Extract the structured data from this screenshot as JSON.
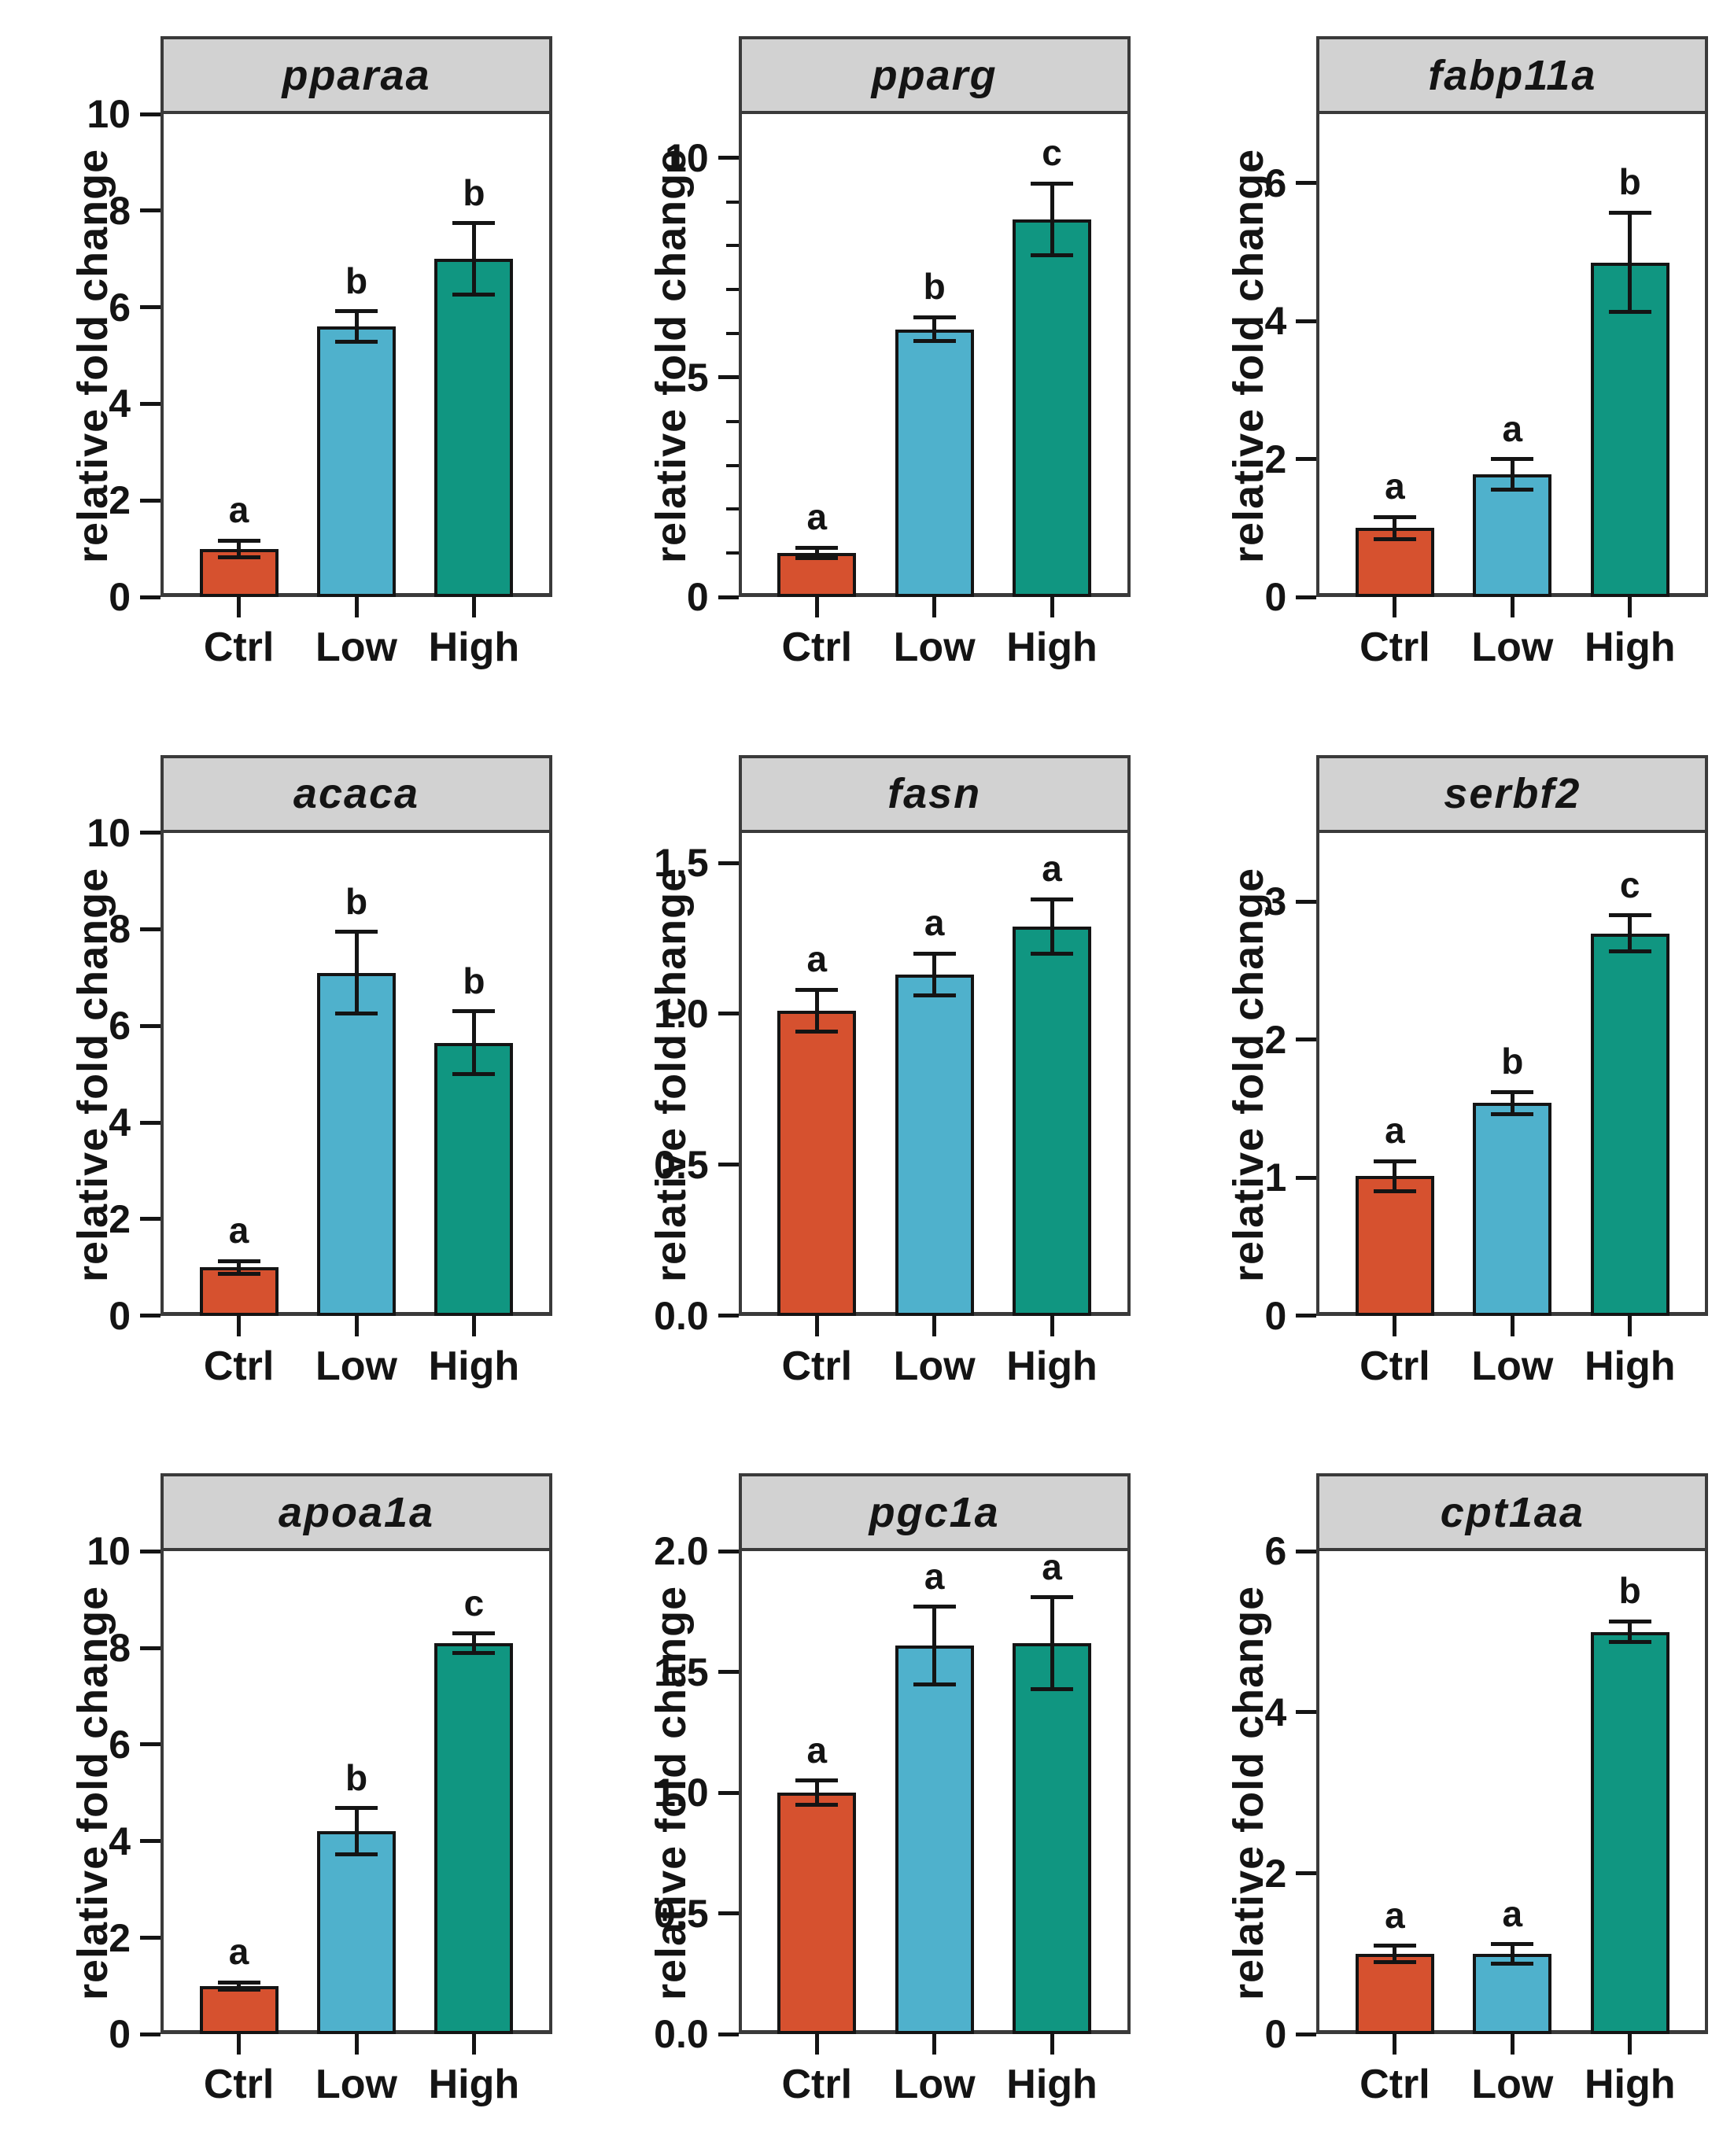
{
  "figure": {
    "ylabel": "relative fold change",
    "categories": [
      "Ctrl",
      "Low",
      "High"
    ],
    "bar_colors": [
      "#D6512F",
      "#4FB1CC",
      "#109681"
    ],
    "strip_bg": "#D2D2D2",
    "border_color": "#3A3A3A",
    "ink_color": "#141414",
    "layout": "3x3 grid of facet panels, bars outlined black with SEM error bars and significance letters"
  },
  "chart_data": [
    {
      "type": "bar",
      "title": "pparaa",
      "categories": [
        "Ctrl",
        "Low",
        "High"
      ],
      "values": [
        1.0,
        5.6,
        7.0
      ],
      "errors": [
        0.17,
        0.32,
        0.74
      ],
      "sig_letters": [
        "a",
        "b",
        "b"
      ],
      "xlabel": "",
      "ylabel": "relative fold change",
      "ylim": [
        0,
        10
      ],
      "yticks": [
        0,
        2,
        4,
        6,
        8,
        10
      ],
      "ytick_labels": [
        "0",
        "2",
        "4",
        "6",
        "8",
        "10"
      ],
      "minor_yticks": []
    },
    {
      "type": "bar",
      "title": "pparg",
      "categories": [
        "Ctrl",
        "Low",
        "High"
      ],
      "values": [
        1.0,
        6.1,
        8.6
      ],
      "errors": [
        0.12,
        0.27,
        0.82
      ],
      "sig_letters": [
        "a",
        "b",
        "c"
      ],
      "xlabel": "",
      "ylabel": "relative fold change",
      "ylim": [
        0,
        11
      ],
      "yticks": [
        0,
        5,
        10
      ],
      "ytick_labels": [
        "0",
        "5",
        "10"
      ],
      "minor_yticks": [
        1,
        2,
        3,
        4,
        6,
        7,
        8,
        9
      ]
    },
    {
      "type": "bar",
      "title": "fabp11a",
      "categories": [
        "Ctrl",
        "Low",
        "High"
      ],
      "values": [
        1.0,
        1.78,
        4.85
      ],
      "errors": [
        0.16,
        0.22,
        0.72
      ],
      "sig_letters": [
        "a",
        "a",
        "b"
      ],
      "xlabel": "",
      "ylabel": "relative fold change",
      "ylim": [
        0,
        7
      ],
      "yticks": [
        0,
        2,
        4,
        6
      ],
      "ytick_labels": [
        "0",
        "2",
        "4",
        "6"
      ],
      "minor_yticks": []
    },
    {
      "type": "bar",
      "title": "acaca",
      "categories": [
        "Ctrl",
        "Low",
        "High"
      ],
      "values": [
        1.0,
        7.1,
        5.65
      ],
      "errors": [
        0.13,
        0.85,
        0.65
      ],
      "sig_letters": [
        "a",
        "b",
        "b"
      ],
      "xlabel": "",
      "ylabel": "relative fold change",
      "ylim": [
        0,
        10
      ],
      "yticks": [
        0,
        2,
        4,
        6,
        8,
        10
      ],
      "ytick_labels": [
        "0",
        "2",
        "4",
        "6",
        "8",
        "10"
      ],
      "minor_yticks": []
    },
    {
      "type": "bar",
      "title": "fasn",
      "categories": [
        "Ctrl",
        "Low",
        "High"
      ],
      "values": [
        1.01,
        1.13,
        1.29
      ],
      "errors": [
        0.07,
        0.07,
        0.09
      ],
      "sig_letters": [
        "a",
        "a",
        "a"
      ],
      "xlabel": "",
      "ylabel": "relative fold change",
      "ylim": [
        0,
        1.6
      ],
      "yticks": [
        0,
        0.5,
        1.0,
        1.5
      ],
      "ytick_labels": [
        "0.0",
        "0.5",
        "1.0",
        "1.5"
      ],
      "minor_yticks": []
    },
    {
      "type": "bar",
      "title": "serbf2",
      "categories": [
        "Ctrl",
        "Low",
        "High"
      ],
      "values": [
        1.01,
        1.54,
        2.77
      ],
      "errors": [
        0.11,
        0.08,
        0.13
      ],
      "sig_letters": [
        "a",
        "b",
        "c"
      ],
      "xlabel": "",
      "ylabel": "relative fold change",
      "ylim": [
        0,
        3.5
      ],
      "yticks": [
        0,
        1,
        2,
        3
      ],
      "ytick_labels": [
        "0",
        "1",
        "2",
        "3"
      ],
      "minor_yticks": []
    },
    {
      "type": "bar",
      "title": "apoa1a",
      "categories": [
        "Ctrl",
        "Low",
        "High"
      ],
      "values": [
        1.0,
        4.2,
        8.1
      ],
      "errors": [
        0.08,
        0.48,
        0.2
      ],
      "sig_letters": [
        "a",
        "b",
        "c"
      ],
      "xlabel": "",
      "ylabel": "relative fold change",
      "ylim": [
        0,
        10
      ],
      "yticks": [
        0,
        2,
        4,
        6,
        8,
        10
      ],
      "ytick_labels": [
        "0",
        "2",
        "4",
        "6",
        "8",
        "10"
      ],
      "minor_yticks": []
    },
    {
      "type": "bar",
      "title": "pgc1a",
      "categories": [
        "Ctrl",
        "Low",
        "High"
      ],
      "values": [
        1.0,
        1.61,
        1.62
      ],
      "errors": [
        0.05,
        0.16,
        0.19
      ],
      "sig_letters": [
        "a",
        "a",
        "a"
      ],
      "xlabel": "",
      "ylabel": "relative fold change",
      "ylim": [
        0,
        2.0
      ],
      "yticks": [
        0,
        0.5,
        1.0,
        1.5,
        2.0
      ],
      "ytick_labels": [
        "0.0",
        "0.5",
        "1.0",
        "1.5",
        "2.0"
      ],
      "minor_yticks": []
    },
    {
      "type": "bar",
      "title": "cpt1aa",
      "categories": [
        "Ctrl",
        "Low",
        "High"
      ],
      "values": [
        1.0,
        1.0,
        5.0
      ],
      "errors": [
        0.1,
        0.12,
        0.13
      ],
      "sig_letters": [
        "a",
        "a",
        "b"
      ],
      "xlabel": "",
      "ylabel": "relative fold change",
      "ylim": [
        0,
        6
      ],
      "yticks": [
        0,
        2,
        4,
        6
      ],
      "ytick_labels": [
        "0",
        "2",
        "4",
        "6"
      ],
      "minor_yticks": []
    }
  ]
}
